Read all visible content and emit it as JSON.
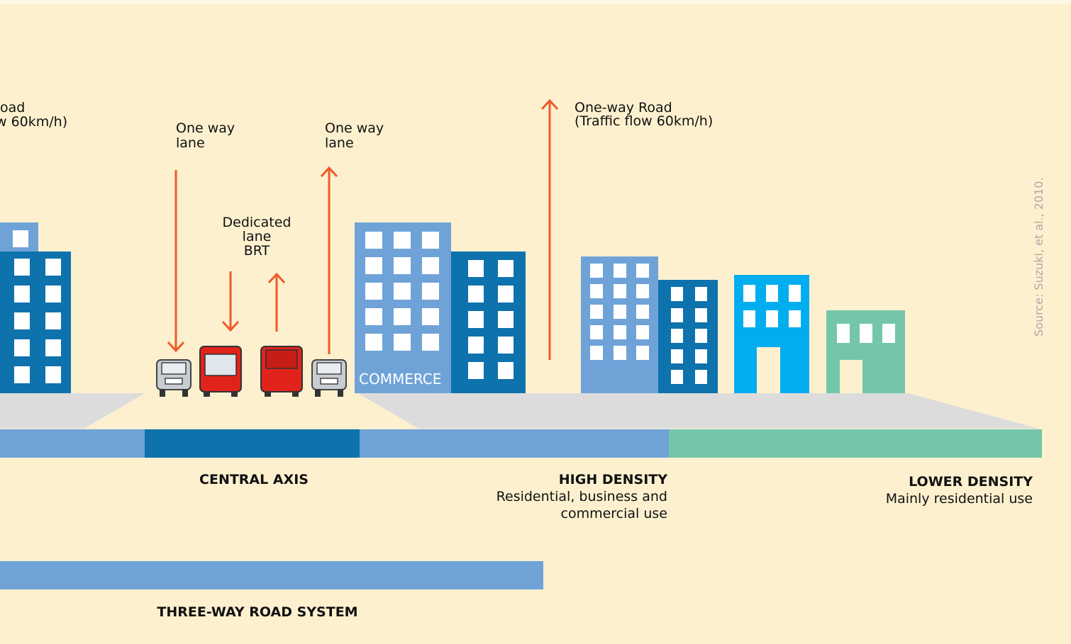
{
  "labels": {
    "left_road": [
      "oad",
      "w 60km/h)"
    ],
    "one_way_lane_down": [
      "One way",
      "lane"
    ],
    "one_way_lane_up": [
      "One way",
      "lane"
    ],
    "dedicated_lane": [
      "Dedicated",
      "lane",
      "BRT"
    ],
    "one_way_road": [
      "One-way Road",
      "(Traffic flow 60km/h)"
    ],
    "commerce": "COMMERCE",
    "central_axis": "CENTRAL AXIS",
    "high_density": {
      "title": "HIGH DENSITY",
      "lines": [
        "Residential, business and",
        "commercial use"
      ]
    },
    "lower_density": {
      "title": "LOWER DENSITY",
      "lines": [
        "Mainly residential use"
      ]
    },
    "three_way": "THREE-WAY ROAD SYSTEM",
    "source": "Source: Suzuki, et al., 2010."
  }
}
